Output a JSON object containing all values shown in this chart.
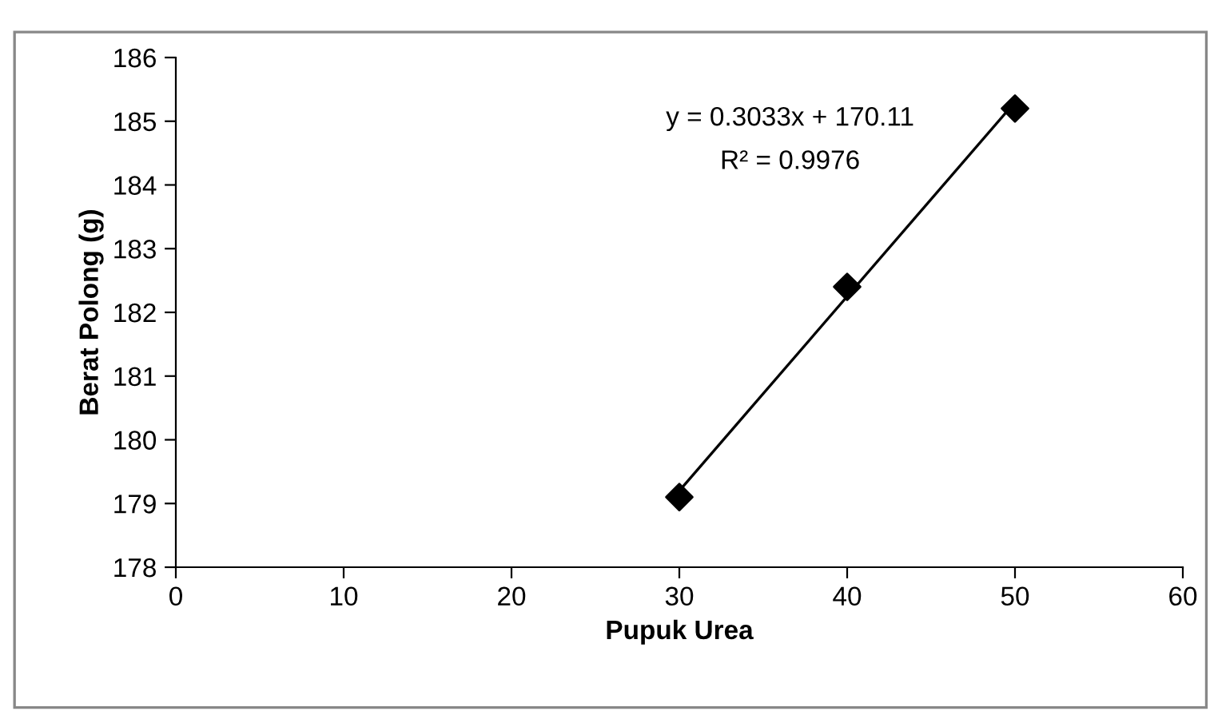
{
  "chart_data": {
    "type": "scatter",
    "xlabel": "Pupuk Urea",
    "ylabel": "Berat Polong (g)",
    "x": [
      30,
      40,
      50
    ],
    "series": [
      {
        "color": "#000000",
        "marker": "diamond",
        "values": [
          179.1,
          182.4,
          185.2
        ]
      },
      {
        "type": "line",
        "color": "#000000",
        "x": [
          30,
          50
        ],
        "values": [
          179.2,
          185.3
        ],
        "marker": "none",
        "line_style": "solid"
      }
    ],
    "xlim": [
      0,
      60
    ],
    "xticks": [
      0,
      10,
      20,
      30,
      40,
      50,
      60
    ],
    "ylim": [
      178,
      186
    ],
    "yticks": [
      178,
      179,
      180,
      181,
      182,
      183,
      184,
      185,
      186
    ],
    "grid": false,
    "legend": false,
    "annotations": [
      "y = 0.3033x + 170.11",
      "R² = 0.9976"
    ]
  }
}
